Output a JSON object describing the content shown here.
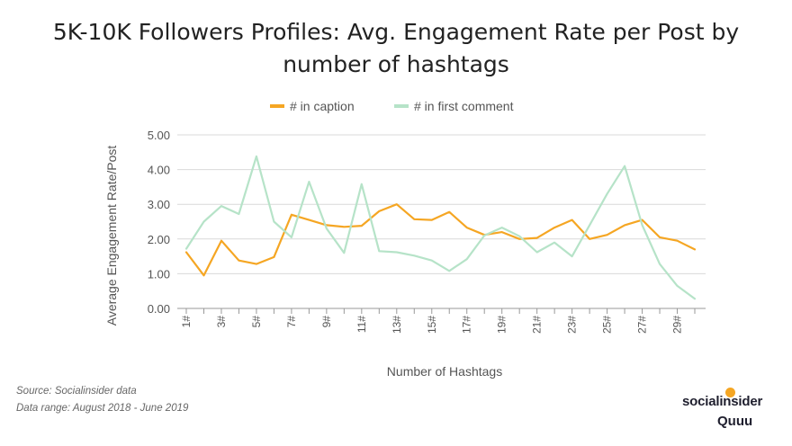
{
  "chart_data": {
    "type": "line",
    "title_line1": "5K-10K Followers Profiles: Avg. Engagement Rate per Post by",
    "title_line2": "number of hashtags",
    "xlabel": "Number of Hashtags",
    "ylabel": "Average Engagement Rate/Post",
    "ylim": [
      0,
      5
    ],
    "yticks": [
      "0.00",
      "1.00",
      "2.00",
      "3.00",
      "4.00",
      "5.00"
    ],
    "ytick_values": [
      0,
      1,
      2,
      3,
      4,
      5
    ],
    "x": [
      1,
      2,
      3,
      4,
      5,
      6,
      7,
      8,
      9,
      10,
      11,
      12,
      13,
      14,
      15,
      16,
      17,
      18,
      19,
      20,
      21,
      22,
      23,
      24,
      25,
      26,
      27,
      28,
      29,
      30
    ],
    "xtick_labels": [
      "1#",
      "3#",
      "5#",
      "7#",
      "9#",
      "11#",
      "13#",
      "15#",
      "17#",
      "19#",
      "21#",
      "23#",
      "25#",
      "27#",
      "29#"
    ],
    "xtick_positions": [
      1,
      3,
      5,
      7,
      9,
      11,
      13,
      15,
      17,
      19,
      21,
      23,
      25,
      27,
      29
    ],
    "grid": true,
    "legend_position": "top-center",
    "series": [
      {
        "name": "# in caption",
        "color": "#f5a623",
        "values": [
          1.62,
          0.95,
          1.95,
          1.38,
          1.28,
          1.48,
          2.7,
          2.55,
          2.4,
          2.35,
          2.38,
          2.8,
          3.0,
          2.57,
          2.55,
          2.78,
          2.33,
          2.12,
          2.2,
          2.0,
          2.03,
          2.33,
          2.55,
          2.0,
          2.12,
          2.4,
          2.55,
          2.05,
          1.95,
          1.7
        ]
      },
      {
        "name": "# in first comment",
        "color": "#b6e3c8",
        "values": [
          1.72,
          2.5,
          2.95,
          2.72,
          4.38,
          2.5,
          2.05,
          3.65,
          2.3,
          1.6,
          3.58,
          1.65,
          1.62,
          1.52,
          1.38,
          1.08,
          1.42,
          2.1,
          2.33,
          2.08,
          1.62,
          1.9,
          1.5,
          2.4,
          3.3,
          4.1,
          2.4,
          1.28,
          0.65,
          0.28
        ]
      }
    ]
  },
  "source": {
    "line1": "Source: Socialinsider data",
    "line2": "Data range: August 2018 - June 2019"
  },
  "logos": {
    "brand1": "socialinsider",
    "brand2": "Quuu"
  }
}
